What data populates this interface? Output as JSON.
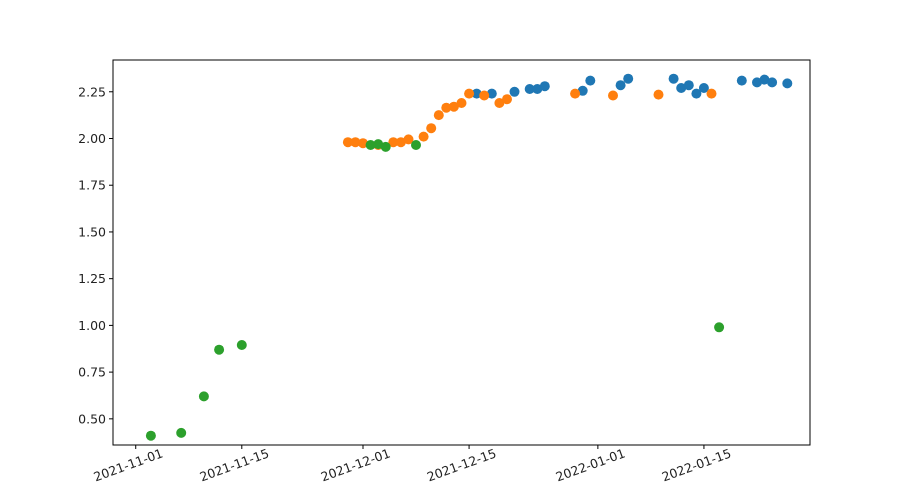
{
  "chart_data": {
    "type": "scatter",
    "title": "",
    "xlabel": "",
    "ylabel": "",
    "x_type": "date",
    "xlim": [
      "2021-10-29",
      "2022-01-29"
    ],
    "ylim": [
      0.36,
      2.42
    ],
    "grid": false,
    "x_ticks": [
      "2021-11-01",
      "2021-11-15",
      "2021-12-01",
      "2021-12-15",
      "2022-01-01",
      "2022-01-15"
    ],
    "y_ticks": [
      "0.50",
      "0.75",
      "1.00",
      "1.25",
      "1.50",
      "1.75",
      "2.00",
      "2.25"
    ],
    "series": [
      {
        "color": "#1f77b4",
        "points": [
          [
            "2021-12-16",
            2.24
          ],
          [
            "2021-12-18",
            2.24
          ],
          [
            "2021-12-21",
            2.25
          ],
          [
            "2021-12-23",
            2.265
          ],
          [
            "2021-12-24",
            2.265
          ],
          [
            "2021-12-25",
            2.28
          ],
          [
            "2021-12-30",
            2.255
          ],
          [
            "2021-12-31",
            2.31
          ],
          [
            "2022-01-04",
            2.285
          ],
          [
            "2022-01-05",
            2.32
          ],
          [
            "2022-01-11",
            2.32
          ],
          [
            "2022-01-12",
            2.27
          ],
          [
            "2022-01-13",
            2.285
          ],
          [
            "2022-01-14",
            2.24
          ],
          [
            "2022-01-15",
            2.27
          ],
          [
            "2022-01-20",
            2.31
          ],
          [
            "2022-01-22",
            2.3
          ],
          [
            "2022-01-23",
            2.315
          ],
          [
            "2022-01-24",
            2.3
          ],
          [
            "2022-01-26",
            2.295
          ]
        ]
      },
      {
        "color": "#ff7f0e",
        "points": [
          [
            "2021-11-29",
            1.98
          ],
          [
            "2021-11-30",
            1.98
          ],
          [
            "2021-12-01",
            1.975
          ],
          [
            "2021-12-03",
            1.965
          ],
          [
            "2021-12-05",
            1.98
          ],
          [
            "2021-12-06",
            1.98
          ],
          [
            "2021-12-07",
            1.995
          ],
          [
            "2021-12-09",
            2.01
          ],
          [
            "2021-12-10",
            2.055
          ],
          [
            "2021-12-11",
            2.125
          ],
          [
            "2021-12-12",
            2.165
          ],
          [
            "2021-12-13",
            2.17
          ],
          [
            "2021-12-14",
            2.19
          ],
          [
            "2021-12-15",
            2.24
          ],
          [
            "2021-12-17",
            2.23
          ],
          [
            "2021-12-19",
            2.19
          ],
          [
            "2021-12-20",
            2.21
          ],
          [
            "2021-12-29",
            2.24
          ],
          [
            "2022-01-03",
            2.23
          ],
          [
            "2022-01-09",
            2.235
          ],
          [
            "2022-01-16",
            2.24
          ]
        ]
      },
      {
        "color": "#2ca02c",
        "points": [
          [
            "2021-11-03",
            0.41
          ],
          [
            "2021-11-07",
            0.425
          ],
          [
            "2021-11-10",
            0.62
          ],
          [
            "2021-11-12",
            0.87
          ],
          [
            "2021-11-15",
            0.895
          ],
          [
            "2021-12-02",
            1.965
          ],
          [
            "2021-12-03",
            1.97
          ],
          [
            "2021-12-04",
            1.955
          ],
          [
            "2021-12-08",
            1.965
          ],
          [
            "2022-01-17",
            0.99
          ]
        ]
      }
    ]
  }
}
